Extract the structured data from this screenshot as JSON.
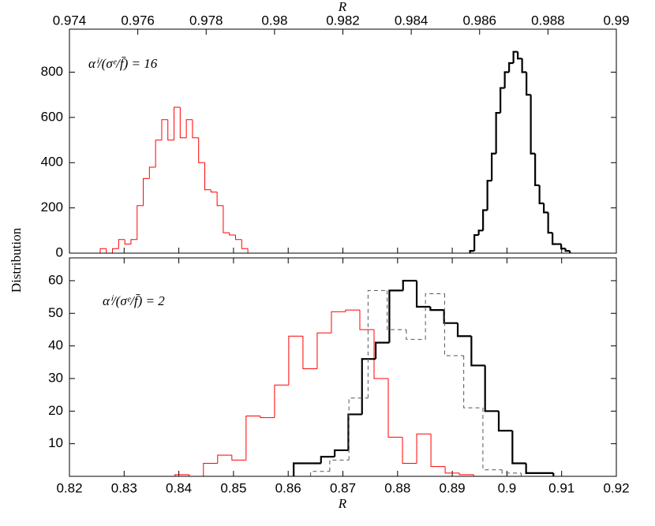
{
  "chart_data": [
    {
      "type": "histogram",
      "xlabel": "R",
      "ylabel": "Distribution",
      "annotation": "αⁱ/(σᵉ/f̄) = 16",
      "xlim": [
        0.974,
        0.99
      ],
      "xticks": [
        0.974,
        0.976,
        0.978,
        0.98,
        0.982,
        0.984,
        0.986,
        0.988,
        0.99
      ],
      "ylim": [
        0,
        990
      ],
      "yticks": [
        0,
        200,
        400,
        600,
        800
      ],
      "series": [
        {
          "color": "#ff0000",
          "style": "solid",
          "bins": [
            0.9749,
            0.97508,
            0.97526,
            0.97544,
            0.97562,
            0.9758,
            0.97598,
            0.97616,
            0.97634,
            0.97652,
            0.9767,
            0.97688,
            0.97706,
            0.97724,
            0.97742,
            0.9776,
            0.97778,
            0.97796,
            0.97814,
            0.97832,
            0.9785,
            0.97868,
            0.97886,
            0.97904,
            0.97922
          ],
          "values": [
            20,
            0,
            20,
            60,
            40,
            60,
            210,
            330,
            380,
            500,
            590,
            500,
            645,
            510,
            590,
            510,
            400,
            280,
            270,
            210,
            90,
            80,
            60,
            20
          ]
        },
        {
          "color": "#000000",
          "style": "bold",
          "bins": [
            0.98572,
            0.985847,
            0.985974,
            0.986101,
            0.986228,
            0.986355,
            0.986482,
            0.986609,
            0.986736,
            0.986863,
            0.98699,
            0.987117,
            0.987244,
            0.987371,
            0.987498,
            0.987625,
            0.987752,
            0.987879,
            0.988006,
            0.988133,
            0.98826,
            0.988387,
            0.988514,
            0.988641
          ],
          "values": [
            10,
            80,
            100,
            190,
            320,
            440,
            620,
            730,
            800,
            840,
            890,
            860,
            800,
            700,
            440,
            300,
            220,
            180,
            90,
            40,
            40,
            20,
            10
          ]
        }
      ]
    },
    {
      "type": "histogram",
      "xlabel": "R",
      "annotation": "αⁱ/(σᵉ/f̄) = 2",
      "xlim": [
        0.82,
        0.92
      ],
      "xticks": [
        0.82,
        0.83,
        0.84,
        0.85,
        0.86,
        0.87,
        0.88,
        0.89,
        0.9,
        0.91,
        0.92
      ],
      "ylim": [
        0,
        67
      ],
      "yticks": [
        10,
        20,
        30,
        40,
        50,
        60
      ],
      "series": [
        {
          "color": "#ff0000",
          "style": "solid",
          "bins": [
            0.8393,
            0.8419,
            0.8445,
            0.8471,
            0.8497,
            0.8523,
            0.8549,
            0.8575,
            0.8601,
            0.8627,
            0.8653,
            0.8679,
            0.8705,
            0.8731,
            0.8757,
            0.8783,
            0.8809,
            0.8835,
            0.8861,
            0.8887,
            0.8913,
            0.8939
          ],
          "values": [
            0.5,
            0,
            4,
            6.5,
            5,
            18.5,
            18,
            28,
            43,
            33,
            44,
            50.5,
            51,
            45,
            30,
            12,
            4,
            13,
            3,
            1,
            0.5
          ]
        },
        {
          "color": "#000000",
          "style": "bold",
          "bins": [
            0.861,
            0.8635,
            0.866,
            0.8685,
            0.871,
            0.8735,
            0.876,
            0.8785,
            0.881,
            0.8835,
            0.886,
            0.8885,
            0.891,
            0.8935,
            0.896,
            0.8985,
            0.901,
            0.9035,
            0.906,
            0.9085
          ],
          "values": [
            4,
            4,
            6,
            8,
            19,
            36,
            41,
            57,
            60,
            52,
            51,
            47,
            43,
            34,
            20,
            14,
            4,
            1,
            1
          ]
        },
        {
          "color": "#555555",
          "style": "dashed",
          "bins": [
            0.8641,
            0.8676,
            0.8711,
            0.8746,
            0.8781,
            0.8816,
            0.8851,
            0.8886,
            0.8921,
            0.8956,
            0.8991,
            0.9026
          ],
          "values": [
            1.5,
            5,
            24,
            57,
            45,
            42,
            56,
            37,
            21,
            2,
            1
          ]
        }
      ]
    }
  ]
}
